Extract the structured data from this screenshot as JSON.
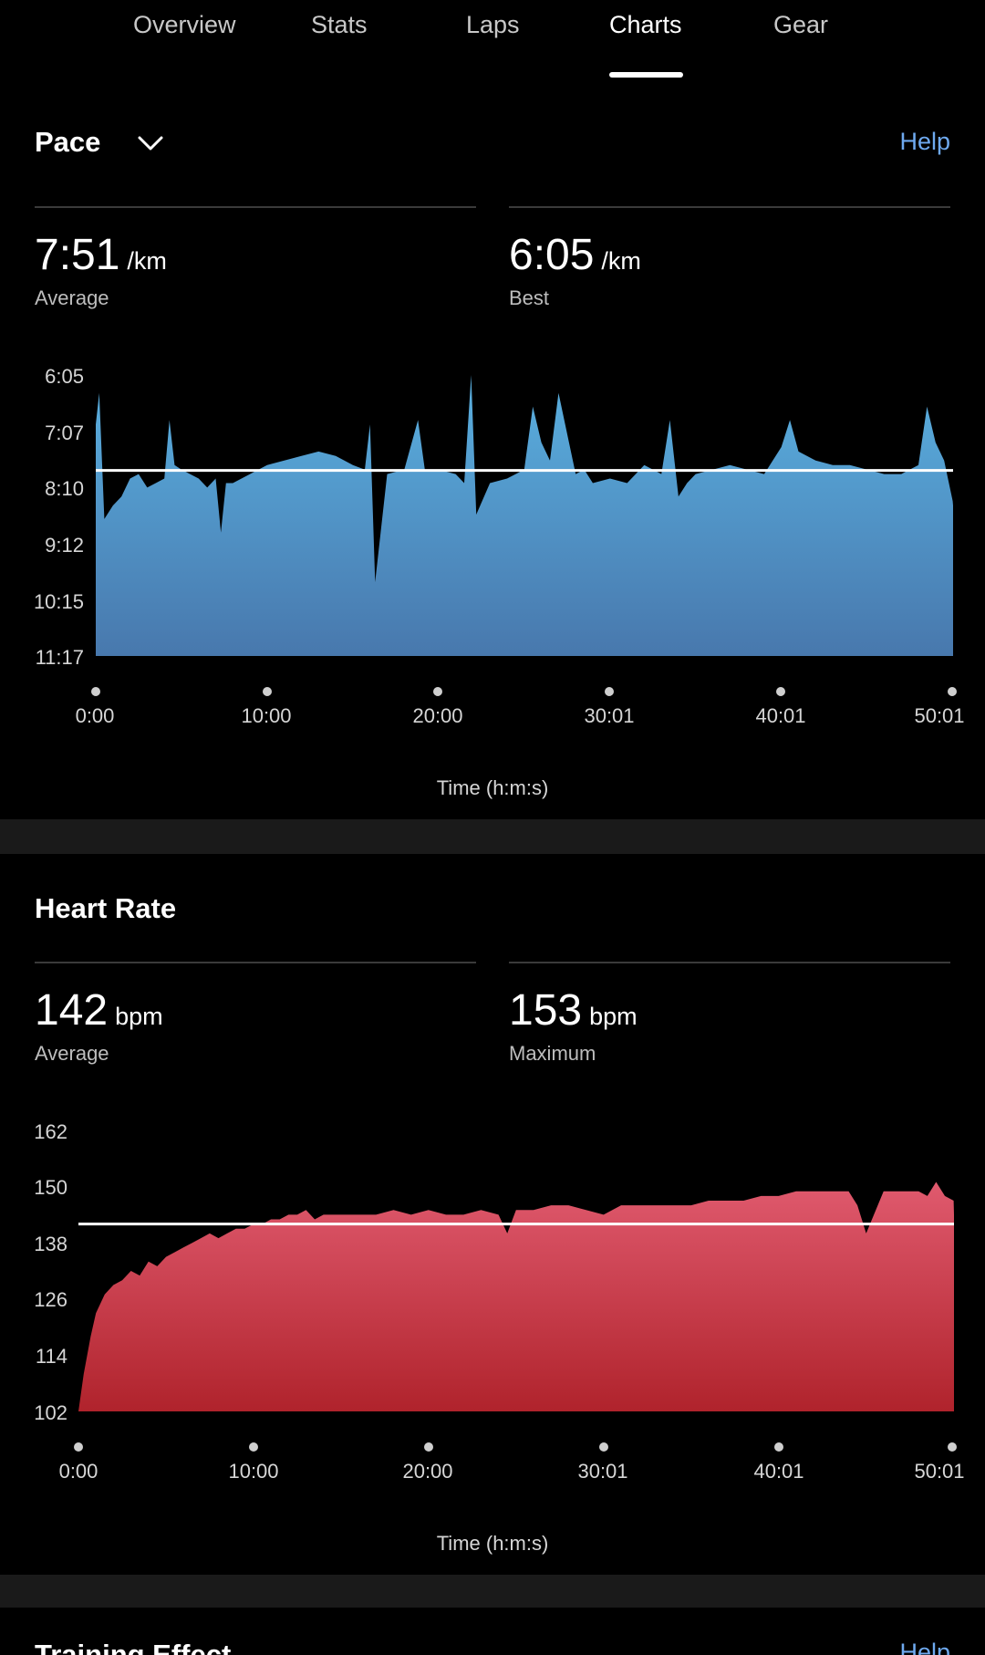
{
  "tabs": [
    {
      "label": "Overview"
    },
    {
      "label": "Stats"
    },
    {
      "label": "Laps"
    },
    {
      "label": "Charts",
      "active": true
    },
    {
      "label": "Gear"
    }
  ],
  "pace": {
    "title": "Pace",
    "help": "Help",
    "average": {
      "value": "7:51",
      "unit": "/km",
      "label": "Average"
    },
    "best": {
      "value": "6:05",
      "unit": "/km",
      "label": "Best"
    },
    "yticks": [
      "6:05",
      "7:07",
      "8:10",
      "9:12",
      "10:15",
      "11:17"
    ],
    "xticks": [
      "0:00",
      "10:00",
      "20:00",
      "30:01",
      "40:01",
      "50:01"
    ],
    "xlabel": "Time (h:m:s)"
  },
  "heart_rate": {
    "title": "Heart Rate",
    "average": {
      "value": "142",
      "unit": "bpm",
      "label": "Average"
    },
    "maximum": {
      "value": "153",
      "unit": "bpm",
      "label": "Maximum"
    },
    "yticks": [
      "162",
      "150",
      "138",
      "126",
      "114",
      "102"
    ],
    "xticks": [
      "0:00",
      "10:00",
      "20:00",
      "30:01",
      "40:01",
      "50:01"
    ],
    "xlabel": "Time (h:m:s)"
  },
  "training_effect": {
    "title": "Training Effect",
    "help": "Help"
  },
  "colors": {
    "accent_link": "#6ea9ef",
    "pace_fill_top": "#5ab0e0",
    "pace_fill_bottom": "#4878ad",
    "hr_fill_top": "#e05a6e",
    "hr_fill_bottom": "#b0232c",
    "average_line": "#ffffff"
  },
  "chart_data": [
    {
      "type": "area",
      "name": "Pace",
      "x_unit": "minutes",
      "x": [
        0,
        0.2,
        0.5,
        1,
        1.5,
        2,
        2.5,
        3,
        3.5,
        4,
        4.3,
        4.6,
        5,
        5.5,
        6,
        6.5,
        7,
        7.3,
        7.6,
        8,
        9,
        10,
        11,
        12,
        13,
        14,
        15,
        15.7,
        16,
        16.3,
        17,
        18,
        18.8,
        19.2,
        20,
        21,
        21.5,
        21.9,
        22.2,
        23,
        24,
        25,
        25.5,
        26,
        26.5,
        27,
        28,
        28.5,
        29,
        30,
        31,
        32,
        33,
        33.5,
        34,
        34.5,
        35,
        36,
        37,
        38,
        39,
        40,
        40.5,
        41,
        42,
        43,
        44,
        45,
        46,
        47,
        48,
        48.5,
        49,
        49.5,
        50,
        50.02
      ],
      "y": [
        "7:00",
        "6:25",
        "8:45",
        "8:30",
        "8:20",
        "8:00",
        "7:55",
        "8:10",
        "8:05",
        "8:00",
        "6:55",
        "7:45",
        "7:50",
        "7:55",
        "8:00",
        "8:10",
        "8:00",
        "9:00",
        "8:05",
        "8:05",
        "7:55",
        "7:45",
        "7:40",
        "7:35",
        "7:30",
        "7:35",
        "7:45",
        "7:50",
        "7:00",
        "9:55",
        "7:55",
        "7:50",
        "6:55",
        "7:50",
        "7:50",
        "7:55",
        "8:05",
        "6:05",
        "8:40",
        "8:05",
        "8:00",
        "7:50",
        "6:40",
        "7:20",
        "7:40",
        "6:25",
        "7:55",
        "7:50",
        "8:05",
        "8:00",
        "8:05",
        "7:45",
        "7:55",
        "6:55",
        "8:20",
        "8:05",
        "7:55",
        "7:50",
        "7:45",
        "7:50",
        "7:55",
        "7:25",
        "6:55",
        "7:30",
        "7:40",
        "7:45",
        "7:45",
        "7:50",
        "7:55",
        "7:55",
        "7:45",
        "6:40",
        "7:20",
        "7:40",
        "8:25",
        "8:30"
      ],
      "average": "7:51",
      "best": "6:05",
      "ylim": [
        "6:05",
        "11:17"
      ],
      "y_axis_inverted": true,
      "xlabel": "Time (h:m:s)"
    },
    {
      "type": "area",
      "name": "Heart Rate",
      "x_unit": "minutes",
      "x": [
        0,
        0.3,
        0.7,
        1,
        1.5,
        2,
        2.5,
        3,
        3.5,
        4,
        4.5,
        5,
        5.5,
        6,
        6.5,
        7,
        7.5,
        8,
        8.5,
        9,
        9.5,
        10,
        10.5,
        11,
        11.5,
        12,
        12.5,
        13,
        13.5,
        14,
        15,
        16,
        17,
        18,
        19,
        20,
        21,
        22,
        23,
        24,
        24.5,
        25,
        26,
        27,
        28,
        29,
        30,
        31,
        32,
        33,
        34,
        35,
        36,
        37,
        38,
        39,
        40,
        41,
        42,
        43,
        44,
        44.5,
        45,
        46,
        47,
        48,
        48.5,
        49,
        49.5,
        50,
        50.02
      ],
      "y": [
        102,
        110,
        118,
        123,
        127,
        129,
        130,
        132,
        131,
        134,
        133,
        135,
        136,
        137,
        138,
        139,
        140,
        139,
        140,
        141,
        141,
        142,
        142,
        143,
        143,
        144,
        144,
        145,
        143,
        144,
        144,
        144,
        144,
        145,
        144,
        145,
        144,
        144,
        145,
        144,
        140,
        145,
        145,
        146,
        146,
        145,
        144,
        146,
        146,
        146,
        146,
        146,
        147,
        147,
        147,
        148,
        148,
        149,
        149,
        149,
        149,
        146,
        140,
        149,
        149,
        149,
        148,
        151,
        148,
        147,
        144
      ],
      "average": 142,
      "maximum": 153,
      "ylim": [
        102,
        162
      ],
      "xlabel": "Time (h:m:s)"
    }
  ]
}
